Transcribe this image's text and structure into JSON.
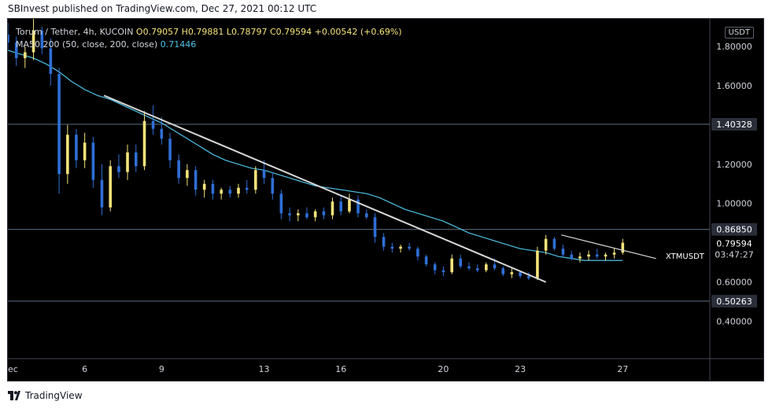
{
  "header": {
    "published_text": "SBInvest published on TradingView.com, Dec 27, 2021 00:12 UTC"
  },
  "legend": {
    "pair": "Torum / Tether, 4h, KUCOIN",
    "open": "O0.79057",
    "high": "H0.79881",
    "low": "L0.78797",
    "close": "C0.79594",
    "change": "+0.00542 (+0.69%)",
    "ma_label": "MA50 200 (50, close, 200, close)",
    "ma_value": "0.71446"
  },
  "currency_button": "USDT",
  "ticker_label": "XTMUSDT",
  "price_tag": {
    "price": "0.79594",
    "countdown": "03:47:27"
  },
  "footer": {
    "brand": "TradingView"
  },
  "colors": {
    "up": "#f5e37a",
    "down": "#2f6fd6",
    "ma": "#4fc3e8",
    "trend": "#d8d8d8",
    "hline": "#5c6f80",
    "tag_bg": "#2a2e39"
  },
  "chart_data": {
    "type": "candlestick",
    "x_tick_labels": [
      "ec",
      "6",
      "9",
      "13",
      "16",
      "20",
      "23",
      "27"
    ],
    "x_tick_days": [
      3,
      6,
      9,
      13,
      16,
      20,
      23,
      27
    ],
    "y_tick_labels": [
      "1.80000",
      "1.60000",
      "1.20000",
      "1.00000",
      "0.60000",
      "0.40000"
    ],
    "y_ticks": [
      1.8,
      1.6,
      1.2,
      1.0,
      0.6,
      0.4
    ],
    "ylim": [
      0.21,
      1.94
    ],
    "xlim": [
      3.0,
      30.4
    ],
    "horizontal_levels": [
      {
        "price": 1.40328,
        "label": "1.40328"
      },
      {
        "price": 0.8685,
        "label": "0.86850"
      },
      {
        "price": 0.50263,
        "label": "0.50263"
      }
    ],
    "trendlines": [
      {
        "from": [
          6.75,
          1.55
        ],
        "to": [
          24.0,
          0.6
        ]
      },
      {
        "from": [
          24.6,
          0.84
        ],
        "to": [
          28.3,
          0.72
        ]
      }
    ],
    "series": [
      {
        "name": "MA50 200",
        "type": "line",
        "points": [
          [
            3.0,
            1.78
          ],
          [
            3.5,
            1.76
          ],
          [
            4.0,
            1.74
          ],
          [
            4.5,
            1.71
          ],
          [
            5.0,
            1.67
          ],
          [
            5.5,
            1.62
          ],
          [
            6.0,
            1.58
          ],
          [
            6.5,
            1.55
          ],
          [
            7.0,
            1.53
          ],
          [
            7.5,
            1.5
          ],
          [
            8.0,
            1.47
          ],
          [
            8.5,
            1.44
          ],
          [
            9.0,
            1.41
          ],
          [
            9.5,
            1.37
          ],
          [
            10.0,
            1.33
          ],
          [
            10.5,
            1.29
          ],
          [
            11.0,
            1.25
          ],
          [
            11.5,
            1.22
          ],
          [
            12.0,
            1.2
          ],
          [
            12.5,
            1.18
          ],
          [
            13.0,
            1.17
          ],
          [
            13.5,
            1.15
          ],
          [
            14.0,
            1.13
          ],
          [
            14.5,
            1.11
          ],
          [
            15.0,
            1.09
          ],
          [
            15.5,
            1.08
          ],
          [
            16.0,
            1.07
          ],
          [
            16.5,
            1.06
          ],
          [
            17.0,
            1.05
          ],
          [
            17.5,
            1.03
          ],
          [
            18.0,
            1.0
          ],
          [
            18.5,
            0.97
          ],
          [
            19.0,
            0.95
          ],
          [
            19.5,
            0.93
          ],
          [
            20.0,
            0.91
          ],
          [
            20.5,
            0.88
          ],
          [
            21.0,
            0.85
          ],
          [
            21.5,
            0.83
          ],
          [
            22.0,
            0.81
          ],
          [
            22.5,
            0.79
          ],
          [
            23.0,
            0.77
          ],
          [
            23.5,
            0.76
          ],
          [
            24.0,
            0.75
          ],
          [
            24.5,
            0.73
          ],
          [
            25.0,
            0.72
          ],
          [
            25.5,
            0.71
          ],
          [
            26.0,
            0.71
          ],
          [
            26.5,
            0.71
          ],
          [
            27.0,
            0.71
          ]
        ]
      },
      {
        "name": "XTMUSDT",
        "type": "candlestick",
        "ohlc": [
          [
            3.0,
            1.86,
            1.92,
            1.78,
            1.82
          ],
          [
            3.33,
            1.82,
            1.85,
            1.7,
            1.74
          ],
          [
            3.67,
            1.74,
            1.8,
            1.69,
            1.77
          ],
          [
            4.0,
            1.77,
            1.94,
            1.73,
            1.88
          ],
          [
            4.33,
            1.88,
            1.9,
            1.76,
            1.79
          ],
          [
            4.67,
            1.79,
            1.84,
            1.6,
            1.66
          ],
          [
            5.0,
            1.66,
            1.69,
            1.05,
            1.15
          ],
          [
            5.33,
            1.15,
            1.4,
            1.1,
            1.35
          ],
          [
            5.67,
            1.35,
            1.38,
            1.18,
            1.22
          ],
          [
            6.0,
            1.22,
            1.36,
            1.18,
            1.31
          ],
          [
            6.33,
            1.31,
            1.34,
            1.08,
            1.12
          ],
          [
            6.67,
            1.12,
            1.2,
            0.94,
            0.98
          ],
          [
            7.0,
            0.98,
            1.22,
            0.96,
            1.19
          ],
          [
            7.33,
            1.19,
            1.25,
            1.13,
            1.16
          ],
          [
            7.67,
            1.16,
            1.3,
            1.12,
            1.26
          ],
          [
            8.0,
            1.26,
            1.3,
            1.16,
            1.19
          ],
          [
            8.33,
            1.19,
            1.47,
            1.17,
            1.42
          ],
          [
            8.67,
            1.42,
            1.5,
            1.35,
            1.38
          ],
          [
            9.0,
            1.38,
            1.44,
            1.3,
            1.33
          ],
          [
            9.33,
            1.33,
            1.36,
            1.18,
            1.22
          ],
          [
            9.67,
            1.22,
            1.25,
            1.1,
            1.13
          ],
          [
            10.0,
            1.13,
            1.2,
            1.09,
            1.17
          ],
          [
            10.33,
            1.17,
            1.19,
            1.04,
            1.07
          ],
          [
            10.67,
            1.07,
            1.12,
            1.03,
            1.1
          ],
          [
            11.0,
            1.1,
            1.12,
            1.02,
            1.05
          ],
          [
            11.33,
            1.05,
            1.08,
            1.02,
            1.07
          ],
          [
            11.67,
            1.07,
            1.09,
            1.03,
            1.05
          ],
          [
            12.0,
            1.05,
            1.1,
            1.03,
            1.08
          ],
          [
            12.33,
            1.08,
            1.12,
            1.05,
            1.07
          ],
          [
            12.67,
            1.07,
            1.19,
            1.05,
            1.17
          ],
          [
            13.0,
            1.17,
            1.22,
            1.1,
            1.13
          ],
          [
            13.33,
            1.13,
            1.16,
            1.02,
            1.05
          ],
          [
            13.67,
            1.05,
            1.07,
            0.92,
            0.95
          ],
          [
            14.0,
            0.95,
            0.98,
            0.91,
            0.94
          ],
          [
            14.33,
            0.94,
            0.97,
            0.91,
            0.95
          ],
          [
            14.67,
            0.95,
            0.98,
            0.92,
            0.93
          ],
          [
            15.0,
            0.93,
            0.97,
            0.91,
            0.96
          ],
          [
            15.33,
            0.96,
            0.98,
            0.92,
            0.94
          ],
          [
            15.67,
            0.94,
            1.03,
            0.92,
            1.01
          ],
          [
            16.0,
            1.01,
            1.04,
            0.94,
            0.96
          ],
          [
            16.33,
            0.96,
            1.05,
            0.95,
            1.02
          ],
          [
            16.67,
            1.02,
            1.04,
            0.93,
            0.95
          ],
          [
            17.0,
            0.95,
            0.97,
            0.92,
            0.93
          ],
          [
            17.33,
            0.93,
            0.95,
            0.8,
            0.83
          ],
          [
            17.67,
            0.83,
            0.85,
            0.76,
            0.78
          ],
          [
            18.0,
            0.78,
            0.8,
            0.75,
            0.77
          ],
          [
            18.33,
            0.77,
            0.79,
            0.75,
            0.78
          ],
          [
            18.67,
            0.78,
            0.8,
            0.76,
            0.77
          ],
          [
            19.0,
            0.77,
            0.78,
            0.71,
            0.73
          ],
          [
            19.33,
            0.73,
            0.74,
            0.68,
            0.69
          ],
          [
            19.67,
            0.69,
            0.7,
            0.64,
            0.66
          ],
          [
            20.0,
            0.66,
            0.68,
            0.63,
            0.65
          ],
          [
            20.33,
            0.65,
            0.74,
            0.64,
            0.72
          ],
          [
            20.67,
            0.72,
            0.74,
            0.67,
            0.68
          ],
          [
            21.0,
            0.68,
            0.7,
            0.66,
            0.67
          ],
          [
            21.33,
            0.67,
            0.69,
            0.65,
            0.66
          ],
          [
            21.67,
            0.66,
            0.7,
            0.65,
            0.69
          ],
          [
            22.0,
            0.69,
            0.72,
            0.66,
            0.67
          ],
          [
            22.33,
            0.67,
            0.68,
            0.63,
            0.64
          ],
          [
            22.67,
            0.64,
            0.67,
            0.62,
            0.65
          ],
          [
            23.0,
            0.65,
            0.66,
            0.62,
            0.63
          ],
          [
            23.33,
            0.63,
            0.65,
            0.61,
            0.62
          ],
          [
            23.67,
            0.62,
            0.78,
            0.61,
            0.76
          ],
          [
            24.0,
            0.76,
            0.84,
            0.74,
            0.82
          ],
          [
            24.33,
            0.82,
            0.83,
            0.76,
            0.77
          ],
          [
            24.67,
            0.77,
            0.79,
            0.73,
            0.74
          ],
          [
            25.0,
            0.74,
            0.76,
            0.71,
            0.72
          ],
          [
            25.33,
            0.72,
            0.75,
            0.7,
            0.73
          ],
          [
            25.67,
            0.73,
            0.76,
            0.71,
            0.74
          ],
          [
            26.0,
            0.74,
            0.77,
            0.72,
            0.73
          ],
          [
            26.33,
            0.73,
            0.75,
            0.71,
            0.74
          ],
          [
            26.67,
            0.74,
            0.77,
            0.72,
            0.75
          ],
          [
            27.0,
            0.75,
            0.82,
            0.74,
            0.8
          ]
        ]
      }
    ],
    "grid": false
  }
}
